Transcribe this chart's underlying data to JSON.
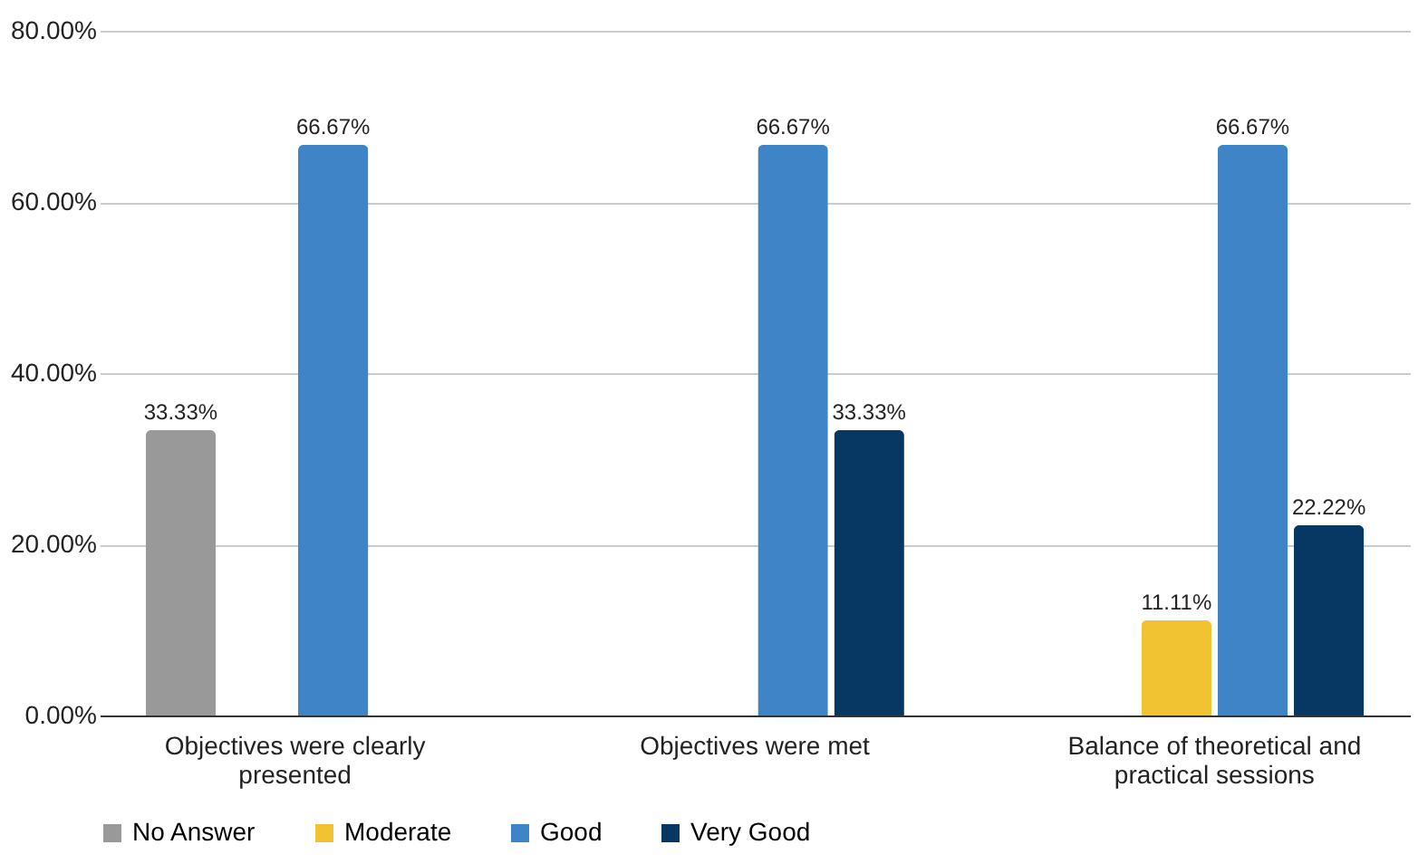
{
  "chart_data": {
    "type": "bar",
    "categories": [
      "Objectives were clearly presented",
      "Objectives were met",
      "Balance of theoretical and practical sessions"
    ],
    "series": [
      {
        "name": "No Answer",
        "color": "#999999",
        "values": [
          33.33,
          null,
          null
        ],
        "value_labels": [
          "33.33%",
          null,
          null
        ]
      },
      {
        "name": "Moderate",
        "color": "#f1c232",
        "values": [
          null,
          null,
          11.11
        ],
        "value_labels": [
          null,
          null,
          "11.11%"
        ]
      },
      {
        "name": "Good",
        "color": "#3d85c6",
        "values": [
          66.67,
          66.67,
          66.67
        ],
        "value_labels": [
          "66.67%",
          "66.67%",
          "66.67%"
        ]
      },
      {
        "name": "Very Good",
        "color": "#073763",
        "values": [
          null,
          33.33,
          22.22
        ],
        "value_labels": [
          null,
          "33.33%",
          "22.22%"
        ]
      }
    ],
    "ylim": [
      0,
      80
    ],
    "yticks": [
      {
        "value": 0,
        "label": "0.00%"
      },
      {
        "value": 20,
        "label": "20.00%"
      },
      {
        "value": 40,
        "label": "40.00%"
      },
      {
        "value": 60,
        "label": "60.00%"
      },
      {
        "value": 80,
        "label": "80.00%"
      }
    ],
    "grid": "y",
    "legend": "bottom"
  }
}
